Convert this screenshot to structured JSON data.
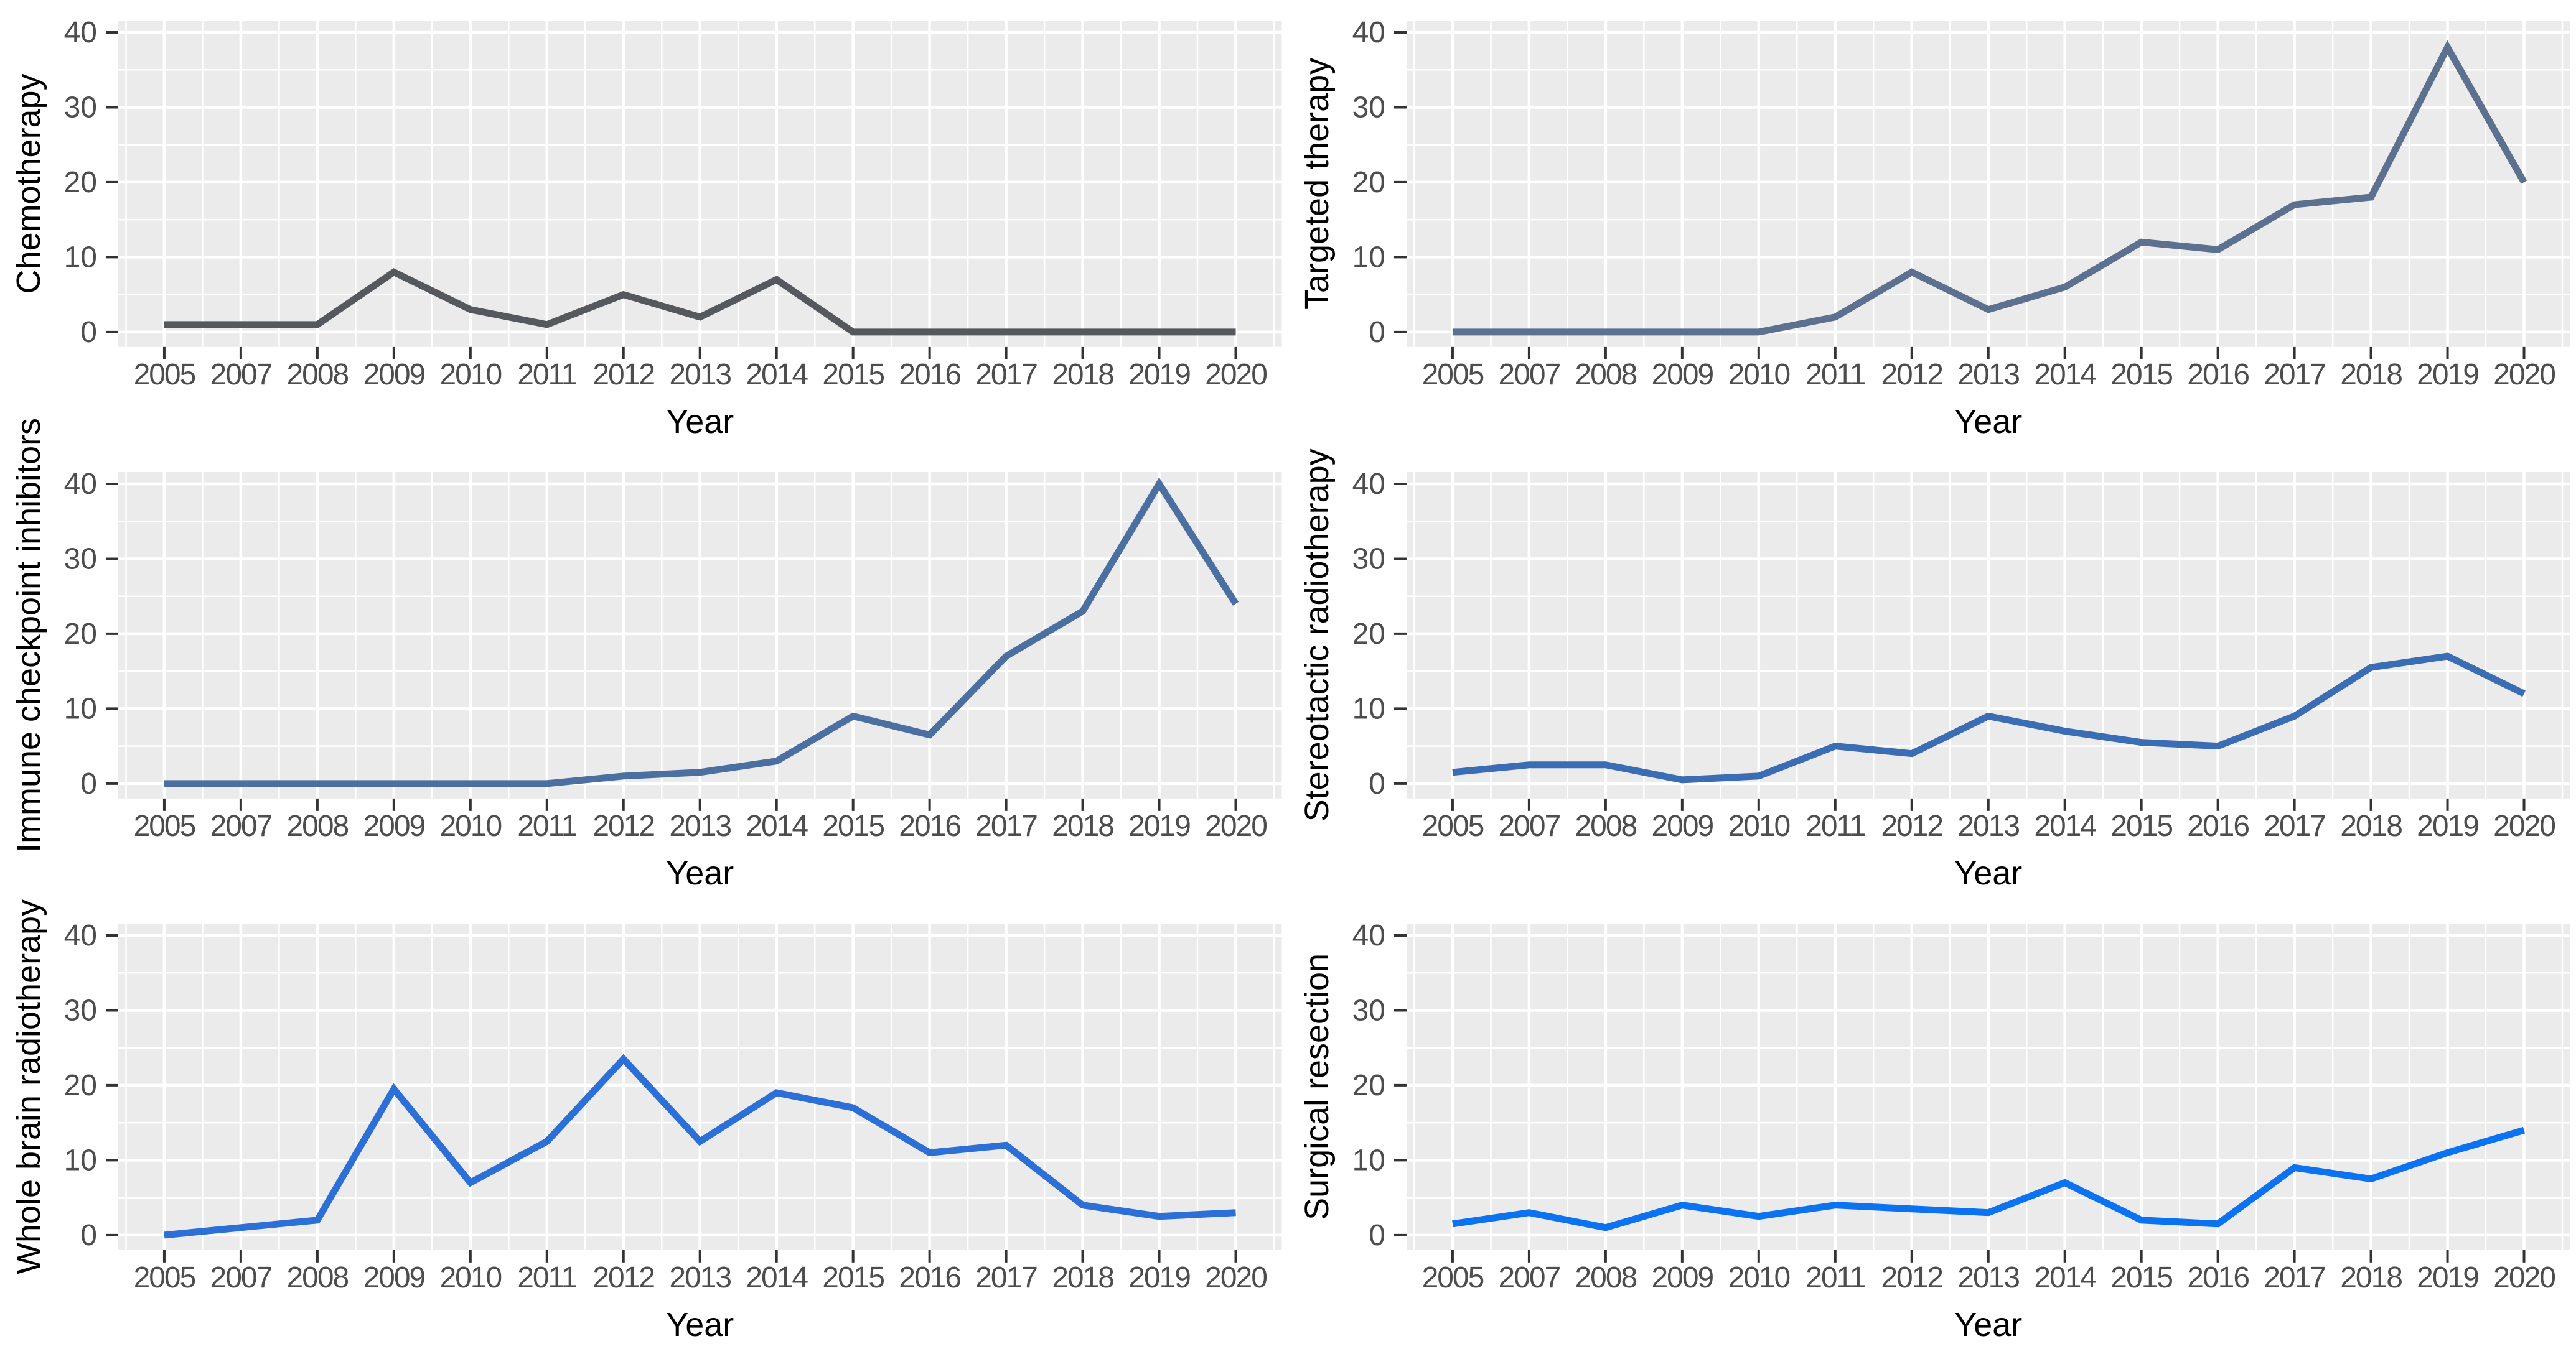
{
  "figure": {
    "layout": "3x2 small multiples",
    "panel_background": "#EBEBEB",
    "grid_color": "#FFFFFF",
    "tick_mark_color": "#333333",
    "tick_label_color": "#4D4D4D",
    "axis_title_color": "#000000",
    "x_axis_title": "Year",
    "x_categories": [
      "2005",
      "2007",
      "2008",
      "2009",
      "2010",
      "2011",
      "2012",
      "2013",
      "2014",
      "2015",
      "2016",
      "2017",
      "2018",
      "2019",
      "2020"
    ],
    "y_tick_labels": [
      "0",
      "10",
      "20",
      "30",
      "40"
    ]
  },
  "chart_data": [
    {
      "type": "line",
      "ylabel": "Chemotherapy",
      "xlabel": "Year",
      "x": [
        "2005",
        "2007",
        "2008",
        "2009",
        "2010",
        "2011",
        "2012",
        "2013",
        "2014",
        "2015",
        "2016",
        "2017",
        "2018",
        "2019",
        "2020"
      ],
      "values": [
        1,
        1,
        1,
        8,
        3,
        1,
        5,
        2,
        7,
        0,
        0,
        0,
        0,
        0,
        0
      ],
      "color": "#55585C",
      "ylim": [
        0,
        40
      ],
      "yticks": [
        0,
        10,
        20,
        30,
        40
      ],
      "grid": "on",
      "legend": "none"
    },
    {
      "type": "line",
      "ylabel": "Targeted therapy",
      "xlabel": "Year",
      "x": [
        "2005",
        "2007",
        "2008",
        "2009",
        "2010",
        "2011",
        "2012",
        "2013",
        "2014",
        "2015",
        "2016",
        "2017",
        "2018",
        "2019",
        "2020"
      ],
      "values": [
        0,
        0,
        0,
        0,
        0,
        2,
        8,
        3,
        6,
        12,
        11,
        17,
        18,
        38,
        20
      ],
      "color": "#5C708F",
      "ylim": [
        0,
        40
      ],
      "yticks": [
        0,
        10,
        20,
        30,
        40
      ],
      "grid": "on",
      "legend": "none"
    },
    {
      "type": "line",
      "ylabel": "Immune checkpoint inhibitors",
      "xlabel": "Year",
      "x": [
        "2005",
        "2007",
        "2008",
        "2009",
        "2010",
        "2011",
        "2012",
        "2013",
        "2014",
        "2015",
        "2016",
        "2017",
        "2018",
        "2019",
        "2020"
      ],
      "values": [
        0,
        0,
        0,
        0,
        0,
        0,
        1,
        1.5,
        3,
        9,
        6.5,
        17,
        23,
        40,
        24
      ],
      "color": "#4A6FA0",
      "ylim": [
        0,
        40
      ],
      "yticks": [
        0,
        10,
        20,
        30,
        40
      ],
      "grid": "on",
      "legend": "none"
    },
    {
      "type": "line",
      "ylabel": "Stereotactic radiotherapy",
      "xlabel": "Year",
      "x": [
        "2005",
        "2007",
        "2008",
        "2009",
        "2010",
        "2011",
        "2012",
        "2013",
        "2014",
        "2015",
        "2016",
        "2017",
        "2018",
        "2019",
        "2020"
      ],
      "values": [
        1.5,
        2.5,
        2.5,
        0.5,
        1,
        5,
        4,
        9,
        7,
        5.5,
        5,
        9,
        15.5,
        17,
        12
      ],
      "color": "#3A6DB3",
      "ylim": [
        0,
        40
      ],
      "yticks": [
        0,
        10,
        20,
        30,
        40
      ],
      "grid": "on",
      "legend": "none"
    },
    {
      "type": "line",
      "ylabel": "Whole brain radiotherapy",
      "xlabel": "Year",
      "x": [
        "2005",
        "2007",
        "2008",
        "2009",
        "2010",
        "2011",
        "2012",
        "2013",
        "2014",
        "2015",
        "2016",
        "2017",
        "2018",
        "2019",
        "2020"
      ],
      "values": [
        0,
        1,
        2,
        19.5,
        7,
        12.5,
        23.5,
        12.5,
        19,
        17,
        11,
        12,
        4,
        2.5,
        3
      ],
      "color": "#2C70D7",
      "ylim": [
        0,
        40
      ],
      "yticks": [
        0,
        10,
        20,
        30,
        40
      ],
      "grid": "on",
      "legend": "none"
    },
    {
      "type": "line",
      "ylabel": "Surgical resection",
      "xlabel": "Year",
      "x": [
        "2005",
        "2007",
        "2008",
        "2009",
        "2010",
        "2011",
        "2012",
        "2013",
        "2014",
        "2015",
        "2016",
        "2017",
        "2018",
        "2019",
        "2020"
      ],
      "values": [
        1.5,
        3,
        1,
        4,
        2.5,
        4,
        3.5,
        3,
        7,
        2,
        1.5,
        9,
        7.5,
        11,
        14
      ],
      "color": "#0B73F2",
      "ylim": [
        0,
        40
      ],
      "yticks": [
        0,
        10,
        20,
        30,
        40
      ],
      "grid": "on",
      "legend": "none"
    }
  ]
}
